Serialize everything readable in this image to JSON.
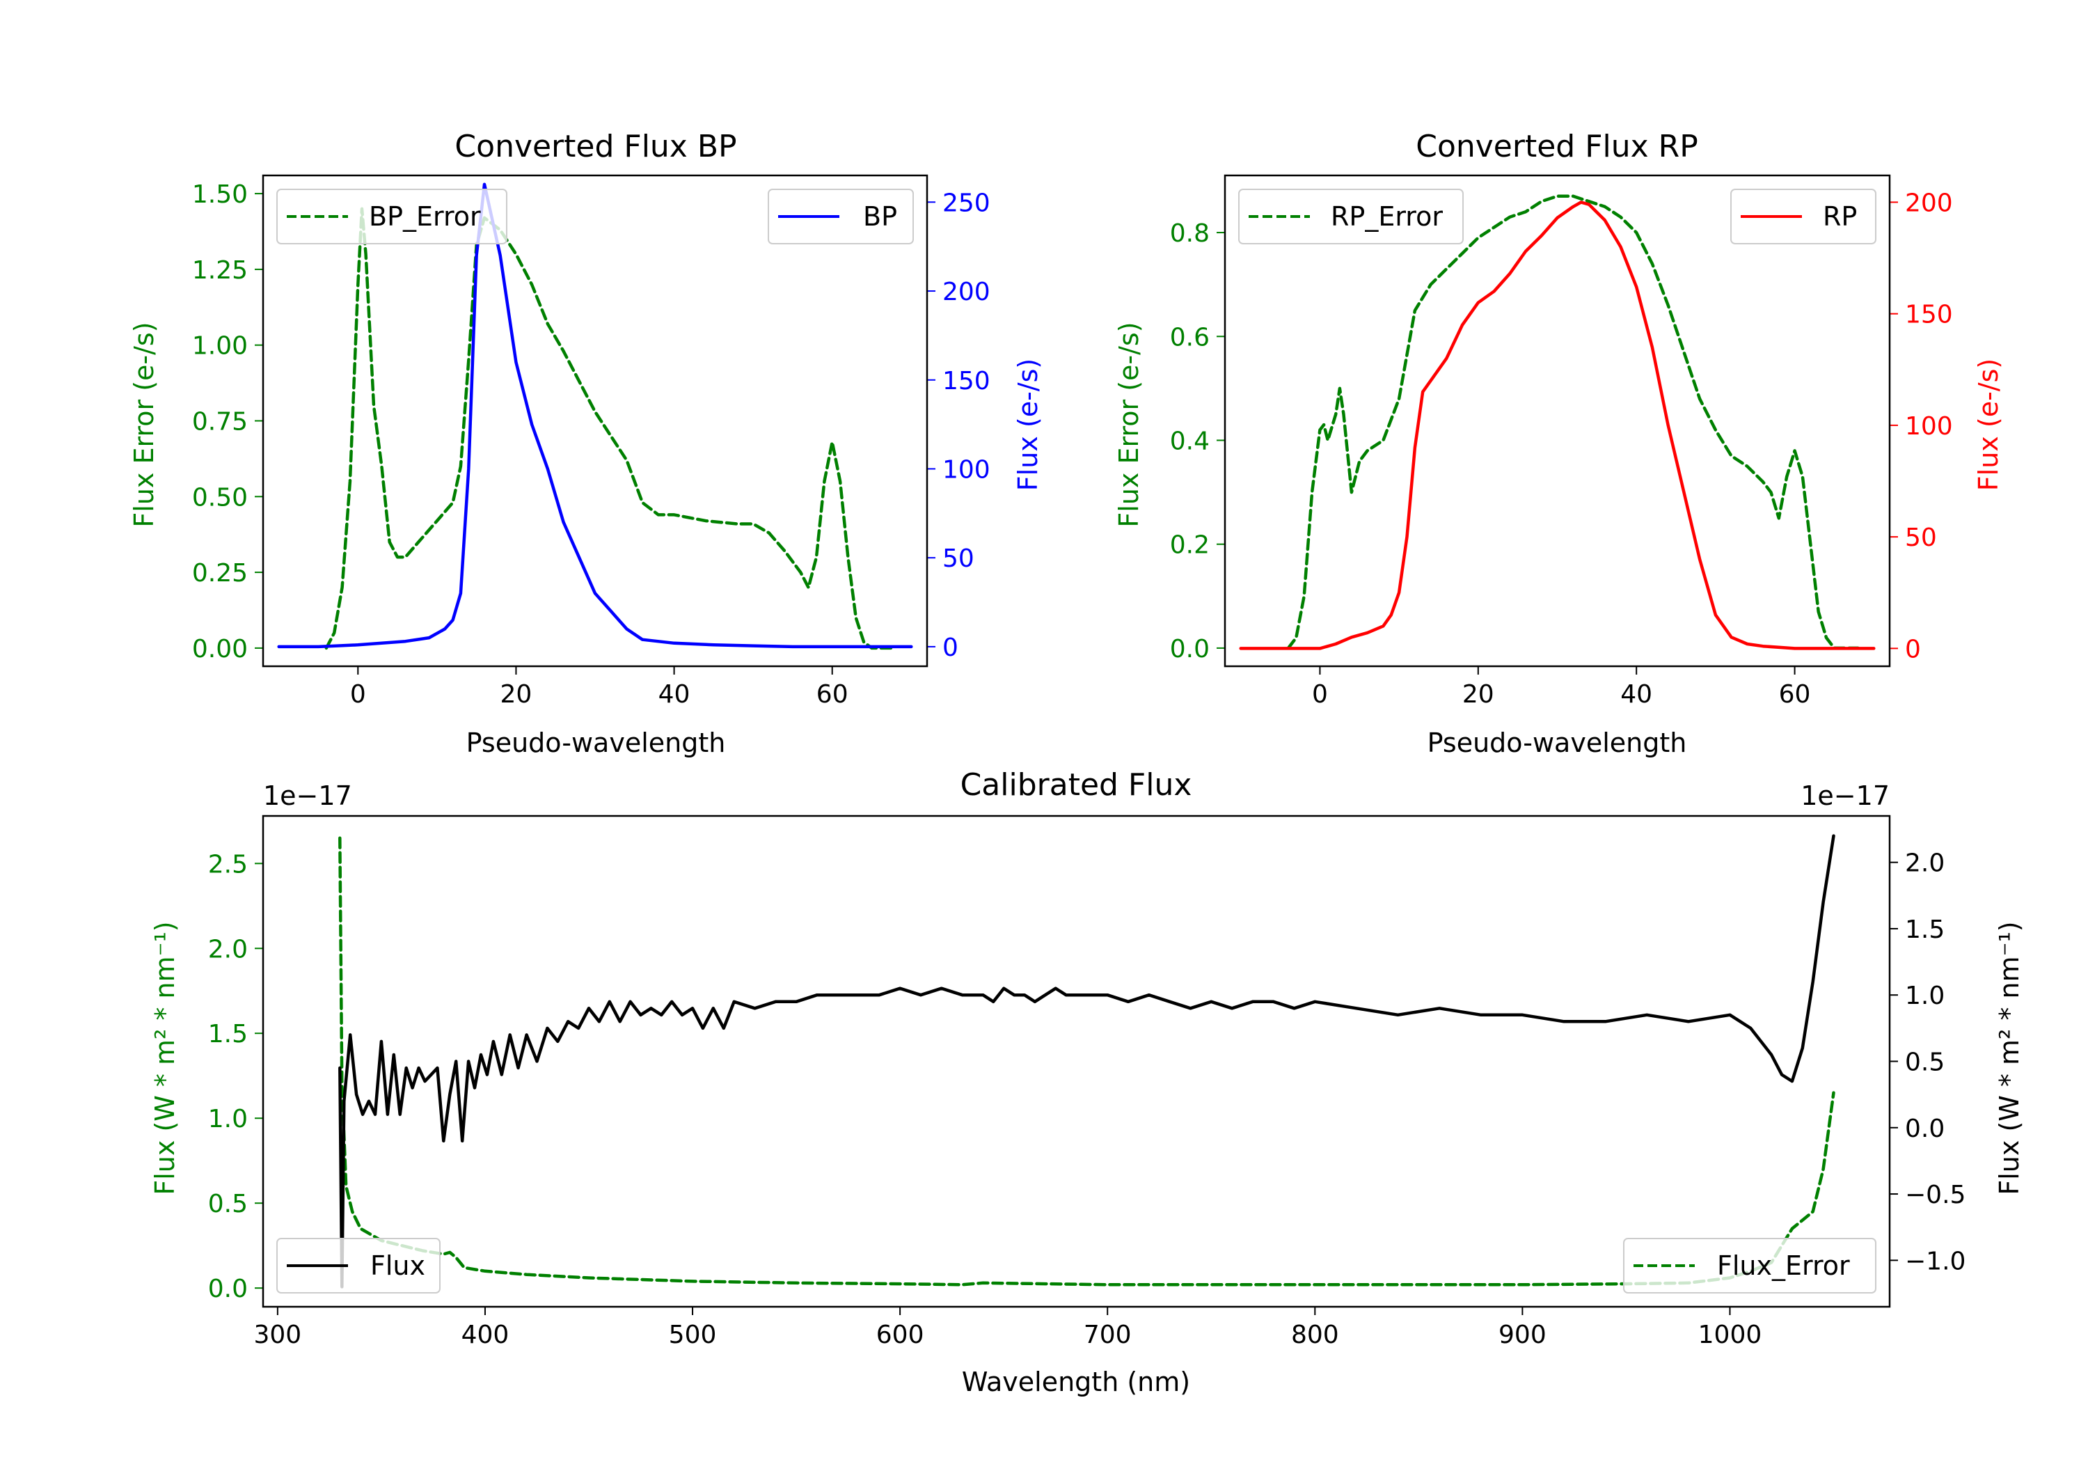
{
  "chart_data": [
    {
      "type": "line",
      "title": "Converted Flux BP",
      "xlabel": "Pseudo-wavelength",
      "xlim": [
        -12,
        72
      ],
      "xticks": [
        0,
        20,
        40,
        60
      ],
      "left_axis": {
        "label": "Flux Error (e-/s)",
        "color": "#008000",
        "lim": [
          -0.06,
          1.56
        ],
        "ticks": [
          0.0,
          0.25,
          0.5,
          0.75,
          1.0,
          1.25,
          1.5
        ],
        "tick_labels": [
          "0.00",
          "0.25",
          "0.50",
          "0.75",
          "1.00",
          "1.25",
          "1.50"
        ]
      },
      "right_axis": {
        "label": "Flux (e-/s)",
        "color": "#0000ff",
        "lim": [
          -11,
          265
        ],
        "ticks": [
          0,
          50,
          100,
          150,
          200,
          250
        ],
        "tick_labels": [
          "0",
          "50",
          "100",
          "150",
          "200",
          "250"
        ]
      },
      "series": [
        {
          "name": "BP_Error",
          "axis": "left",
          "color": "#008000",
          "style": "dashed",
          "x": [
            -4,
            -3,
            -2,
            -1,
            0,
            0.5,
            1,
            2,
            3,
            4,
            5,
            6,
            8,
            10,
            12,
            13,
            14,
            15,
            16,
            18,
            20,
            22,
            24,
            26,
            28,
            30,
            32,
            34,
            36,
            38,
            40,
            44,
            48,
            50,
            52,
            54,
            56,
            57,
            58,
            59,
            60,
            61,
            62,
            63,
            64,
            65,
            66,
            67,
            68
          ],
          "y": [
            0.0,
            0.05,
            0.2,
            0.55,
            1.2,
            1.45,
            1.3,
            0.8,
            0.6,
            0.35,
            0.3,
            0.3,
            0.36,
            0.42,
            0.48,
            0.6,
            0.95,
            1.33,
            1.42,
            1.38,
            1.3,
            1.2,
            1.07,
            0.98,
            0.88,
            0.78,
            0.7,
            0.62,
            0.48,
            0.44,
            0.44,
            0.42,
            0.41,
            0.41,
            0.38,
            0.32,
            0.25,
            0.2,
            0.3,
            0.55,
            0.68,
            0.55,
            0.3,
            0.1,
            0.02,
            0.0,
            0.0,
            0.0,
            0.0
          ]
        },
        {
          "name": "BP",
          "axis": "right",
          "color": "#0000ff",
          "style": "solid",
          "x": [
            -10,
            -5,
            0,
            3,
            6,
            9,
            11,
            12,
            13,
            14,
            15,
            16,
            18,
            20,
            22,
            24,
            26,
            28,
            30,
            32,
            34,
            36,
            40,
            45,
            50,
            55,
            60,
            65,
            70
          ],
          "y": [
            0,
            0,
            1,
            2,
            3,
            5,
            10,
            15,
            30,
            100,
            220,
            260,
            220,
            160,
            125,
            100,
            70,
            50,
            30,
            20,
            10,
            4,
            2,
            1,
            0.5,
            0,
            0,
            0,
            0
          ]
        }
      ],
      "legend": [
        {
          "label": "BP_Error",
          "placement": "upper-left"
        },
        {
          "label": "BP",
          "placement": "upper-right"
        }
      ]
    },
    {
      "type": "line",
      "title": "Converted Flux RP",
      "xlabel": "Pseudo-wavelength",
      "xlim": [
        -12,
        72
      ],
      "xticks": [
        0,
        20,
        40,
        60
      ],
      "left_axis": {
        "label": "Flux Error (e-/s)",
        "color": "#008000",
        "lim": [
          -0.035,
          0.91
        ],
        "ticks": [
          0.0,
          0.2,
          0.4,
          0.6,
          0.8
        ],
        "tick_labels": [
          "0.0",
          "0.2",
          "0.4",
          "0.6",
          "0.8"
        ]
      },
      "right_axis": {
        "label": "Flux (e-/s)",
        "color": "#ff0000",
        "lim": [
          -8,
          212
        ],
        "ticks": [
          0,
          50,
          100,
          150,
          200
        ],
        "tick_labels": [
          "0",
          "50",
          "100",
          "150",
          "200"
        ]
      },
      "series": [
        {
          "name": "RP_Error",
          "axis": "left",
          "color": "#008000",
          "style": "dashed",
          "x": [
            -4,
            -3,
            -2,
            -1,
            0,
            0.5,
            1,
            2,
            2.5,
            3,
            4,
            5,
            6,
            8,
            10,
            12,
            14,
            16,
            18,
            20,
            22,
            24,
            26,
            28,
            30,
            32,
            34,
            36,
            38,
            40,
            42,
            44,
            46,
            48,
            50,
            52,
            54,
            56,
            57,
            58,
            59,
            60,
            61,
            62,
            63,
            64,
            65,
            66,
            67,
            68
          ],
          "y": [
            0.0,
            0.02,
            0.1,
            0.3,
            0.42,
            0.43,
            0.4,
            0.45,
            0.5,
            0.45,
            0.3,
            0.36,
            0.38,
            0.4,
            0.48,
            0.65,
            0.7,
            0.73,
            0.76,
            0.79,
            0.81,
            0.83,
            0.84,
            0.86,
            0.87,
            0.87,
            0.86,
            0.85,
            0.83,
            0.8,
            0.74,
            0.66,
            0.57,
            0.48,
            0.42,
            0.37,
            0.35,
            0.32,
            0.3,
            0.25,
            0.33,
            0.38,
            0.33,
            0.2,
            0.07,
            0.02,
            0.0,
            0.0,
            0.0,
            0.0
          ]
        },
        {
          "name": "RP",
          "axis": "right",
          "color": "#ff0000",
          "style": "solid",
          "x": [
            -10,
            -5,
            0,
            2,
            4,
            6,
            8,
            9,
            10,
            11,
            12,
            13,
            14,
            16,
            18,
            20,
            22,
            24,
            26,
            28,
            30,
            32,
            33,
            34,
            36,
            38,
            40,
            42,
            44,
            46,
            48,
            50,
            52,
            54,
            56,
            60,
            65,
            70
          ],
          "y": [
            0,
            0,
            0,
            2,
            5,
            7,
            10,
            15,
            25,
            50,
            90,
            115,
            120,
            130,
            145,
            155,
            160,
            168,
            178,
            185,
            193,
            198,
            200,
            199,
            192,
            180,
            162,
            135,
            100,
            70,
            40,
            15,
            5,
            2,
            1,
            0,
            0,
            0
          ]
        }
      ],
      "legend": [
        {
          "label": "RP_Error",
          "placement": "upper-left"
        },
        {
          "label": "RP",
          "placement": "upper-right"
        }
      ]
    },
    {
      "type": "line",
      "title": "Calibrated Flux",
      "xlabel": "Wavelength (nm)",
      "xlim": [
        293,
        1077
      ],
      "xticks": [
        300,
        400,
        500,
        600,
        700,
        800,
        900,
        1000
      ],
      "left_axis": {
        "label": "Flux (W * m² * nm⁻¹)",
        "color": "#008000",
        "offset_text": "1e−17",
        "lim": [
          -0.11,
          2.78
        ],
        "ticks": [
          0.0,
          0.5,
          1.0,
          1.5,
          2.0,
          2.5
        ],
        "tick_labels": [
          "0.0",
          "0.5",
          "1.0",
          "1.5",
          "2.0",
          "2.5"
        ]
      },
      "right_axis": {
        "label": "Flux (W * m² * nm⁻¹)",
        "color": "#000000",
        "offset_text": "1e−17",
        "lim": [
          -1.35,
          2.35
        ],
        "ticks": [
          -1.0,
          -0.5,
          0.0,
          0.5,
          1.0,
          1.5,
          2.0
        ],
        "tick_labels": [
          "−1.0",
          "−0.5",
          "0.0",
          "0.5",
          "1.0",
          "1.5",
          "2.0"
        ]
      },
      "series": [
        {
          "name": "Flux_Error",
          "axis": "left",
          "color": "#008000",
          "style": "dashed",
          "x": [
            330,
            331,
            333,
            336,
            340,
            350,
            360,
            370,
            380,
            383,
            386,
            390,
            400,
            420,
            450,
            500,
            550,
            600,
            630,
            640,
            700,
            750,
            800,
            850,
            900,
            950,
            980,
            1000,
            1010,
            1020,
            1025,
            1030,
            1035,
            1040,
            1045,
            1050
          ],
          "y": [
            2.65,
            1.2,
            0.6,
            0.45,
            0.35,
            0.28,
            0.25,
            0.22,
            0.2,
            0.21,
            0.18,
            0.12,
            0.1,
            0.08,
            0.06,
            0.04,
            0.03,
            0.025,
            0.02,
            0.03,
            0.02,
            0.02,
            0.02,
            0.02,
            0.02,
            0.025,
            0.03,
            0.06,
            0.1,
            0.15,
            0.25,
            0.35,
            0.4,
            0.45,
            0.7,
            1.15
          ]
        },
        {
          "name": "Flux",
          "axis": "right",
          "color": "#000000",
          "style": "solid",
          "x": [
            330,
            331,
            332,
            335,
            338,
            341,
            344,
            347,
            350,
            353,
            356,
            359,
            362,
            365,
            368,
            371,
            374,
            377,
            380,
            383,
            386,
            389,
            392,
            395,
            398,
            401,
            404,
            408,
            412,
            416,
            420,
            425,
            430,
            435,
            440,
            445,
            450,
            455,
            460,
            465,
            470,
            475,
            480,
            485,
            490,
            495,
            500,
            505,
            510,
            515,
            520,
            530,
            540,
            550,
            560,
            570,
            580,
            590,
            600,
            610,
            620,
            630,
            640,
            645,
            650,
            655,
            660,
            665,
            670,
            675,
            680,
            690,
            700,
            710,
            720,
            730,
            740,
            750,
            760,
            770,
            780,
            790,
            800,
            820,
            840,
            860,
            880,
            900,
            920,
            940,
            960,
            980,
            1000,
            1010,
            1020,
            1025,
            1030,
            1035,
            1040,
            1045,
            1050
          ],
          "y": [
            0.45,
            -1.2,
            0.2,
            0.7,
            0.25,
            0.1,
            0.2,
            0.1,
            0.65,
            0.1,
            0.55,
            0.1,
            0.45,
            0.3,
            0.45,
            0.35,
            0.4,
            0.45,
            -0.1,
            0.25,
            0.5,
            -0.1,
            0.5,
            0.3,
            0.55,
            0.4,
            0.65,
            0.4,
            0.7,
            0.45,
            0.7,
            0.5,
            0.75,
            0.65,
            0.8,
            0.75,
            0.9,
            0.8,
            0.95,
            0.8,
            0.95,
            0.85,
            0.9,
            0.85,
            0.95,
            0.85,
            0.9,
            0.75,
            0.9,
            0.75,
            0.95,
            0.9,
            0.95,
            0.95,
            1.0,
            1.0,
            1.0,
            1.0,
            1.05,
            1.0,
            1.05,
            1.0,
            1.0,
            0.95,
            1.05,
            1.0,
            1.0,
            0.95,
            1.0,
            1.05,
            1.0,
            1.0,
            1.0,
            0.95,
            1.0,
            0.95,
            0.9,
            0.95,
            0.9,
            0.95,
            0.95,
            0.9,
            0.95,
            0.9,
            0.85,
            0.9,
            0.85,
            0.85,
            0.8,
            0.8,
            0.85,
            0.8,
            0.85,
            0.75,
            0.55,
            0.4,
            0.35,
            0.6,
            1.1,
            1.7,
            2.2
          ]
        }
      ],
      "legend": [
        {
          "label": "Flux",
          "placement": "lower-left"
        },
        {
          "label": "Flux_Error",
          "placement": "lower-right"
        }
      ]
    }
  ]
}
